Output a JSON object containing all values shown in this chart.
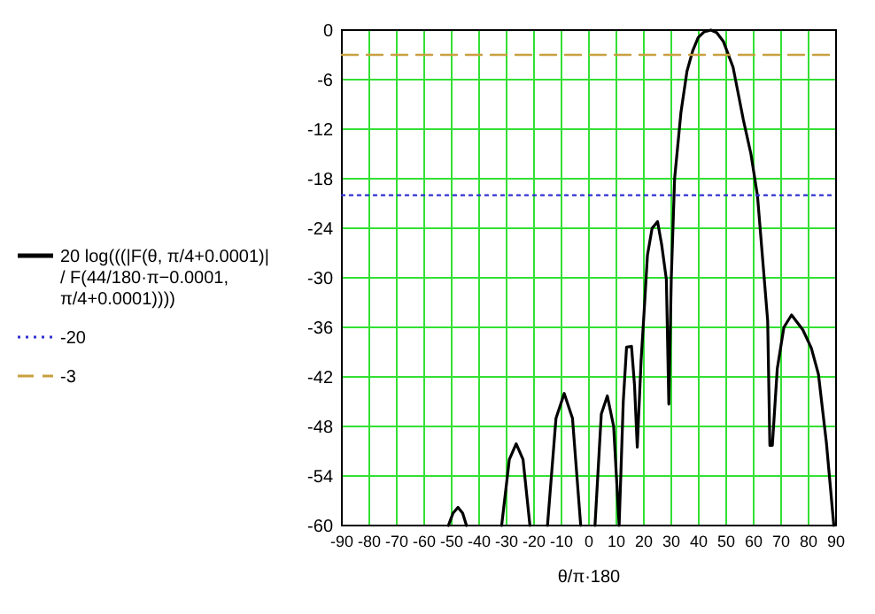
{
  "chart_data": {
    "type": "line",
    "xlabel": "θ/π·180",
    "xlim": [
      -90,
      90
    ],
    "ylim": [
      -60,
      0
    ],
    "xticks": [
      -90,
      -80,
      -70,
      -60,
      -50,
      -40,
      -30,
      -20,
      -10,
      0,
      10,
      20,
      30,
      40,
      50,
      60,
      70,
      80,
      90
    ],
    "yticks": [
      0,
      -6,
      -12,
      -18,
      -24,
      -30,
      -36,
      -42,
      -48,
      -54,
      -60
    ],
    "grid": true,
    "legend": "left",
    "marker": "none",
    "series": [
      {
        "name": "20 log(((|F(θ, π/4+0.0001)| / F(44/180·π−0.0001, π/4+0.0001))))",
        "color": "#000000",
        "line_style": "solid",
        "x": [
          -51.2,
          -49.5,
          -47.7,
          -46,
          -44.6,
          -40,
          -31.8,
          -29,
          -26.5,
          -24,
          -21.5,
          -18,
          -15.1,
          -12,
          -9,
          -6,
          -3,
          0,
          2.2,
          4.5,
          6.7,
          9,
          11,
          12.5,
          13.7,
          15.5,
          16.6,
          17.6,
          19,
          20.3,
          21.3,
          23,
          25,
          26.5,
          28.2,
          29.1,
          30,
          31.2,
          33.5,
          35.7,
          37.8,
          39.8,
          42,
          44.4,
          46.5,
          49,
          52.5,
          56.2,
          59,
          61.4,
          65.1,
          65.9,
          66.8,
          68.6,
          71,
          73.8,
          77.9,
          81,
          83.6,
          86.5,
          89.2
        ],
        "values": [
          -60,
          -58.5,
          -57.8,
          -58.5,
          -60,
          null,
          -60,
          -52,
          -50.1,
          -52,
          -60,
          null,
          -60,
          -47,
          -44,
          -47,
          -60,
          null,
          -60,
          -46.5,
          -44.3,
          -48,
          -60,
          -45,
          -38.4,
          -38.3,
          -43,
          -50.5,
          -40,
          -33,
          -27.3,
          -24,
          -23.2,
          -26,
          -30.2,
          -45.3,
          -30,
          -18,
          -10,
          -5,
          -2.5,
          -0.9,
          -0.2,
          0,
          -0.3,
          -1.4,
          -4.5,
          -10.8,
          -15,
          -20.1,
          -35.2,
          -50.3,
          -50.3,
          -41,
          -36,
          -34.5,
          -36.3,
          -38.5,
          -41.7,
          -50,
          -60
        ]
      },
      {
        "name": "-20",
        "color": "#3030d0",
        "line_style": "dotted",
        "x": [
          -90,
          90
        ],
        "values": [
          -20,
          -20
        ]
      },
      {
        "name": "-3",
        "color": "#c8a040",
        "line_style": "dashed",
        "x": [
          -90,
          90
        ],
        "values": [
          -3,
          -3
        ]
      }
    ]
  }
}
